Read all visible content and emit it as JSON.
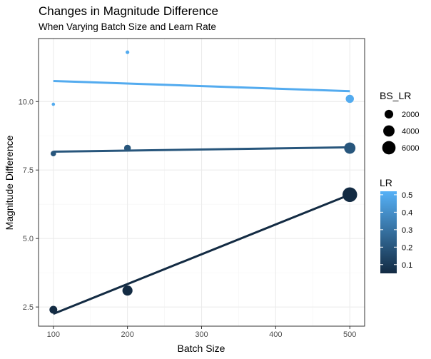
{
  "chart_data": {
    "type": "scatter",
    "title": "Changes in Magnitude Difference",
    "subtitle": "When Varying Batch Size and Learn Rate",
    "xlabel": "Batch Size",
    "ylabel": "Magnitude Difference",
    "xlim": [
      80,
      520
    ],
    "ylim": [
      1.8,
      12.3
    ],
    "x_ticks": [
      100,
      200,
      300,
      400,
      500
    ],
    "y_ticks": [
      2.5,
      5.0,
      7.5,
      10.0
    ],
    "x_tick_labels": [
      "100",
      "200",
      "300",
      "400",
      "500"
    ],
    "y_tick_labels": [
      "2.5",
      "5.0",
      "7.5",
      "10.0"
    ],
    "grid": true,
    "points": [
      {
        "x": 100,
        "y": 9.9,
        "lr": 0.5,
        "bs_lr": 50
      },
      {
        "x": 200,
        "y": 11.8,
        "lr": 0.5,
        "bs_lr": 100
      },
      {
        "x": 500,
        "y": 10.1,
        "lr": 0.5,
        "bs_lr": 1700
      },
      {
        "x": 100,
        "y": 8.1,
        "lr": 0.2,
        "bs_lr": 500
      },
      {
        "x": 200,
        "y": 8.3,
        "lr": 0.2,
        "bs_lr": 1000
      },
      {
        "x": 500,
        "y": 8.3,
        "lr": 0.2,
        "bs_lr": 4000
      },
      {
        "x": 100,
        "y": 2.4,
        "lr": 0.05,
        "bs_lr": 1500
      },
      {
        "x": 200,
        "y": 3.1,
        "lr": 0.05,
        "bs_lr": 3000
      },
      {
        "x": 500,
        "y": 6.6,
        "lr": 0.05,
        "bs_lr": 7500
      }
    ],
    "fit_lines": [
      {
        "lr": 0.5,
        "x": [
          100,
          500
        ],
        "y": [
          10.75,
          10.38
        ]
      },
      {
        "lr": 0.2,
        "x": [
          100,
          500
        ],
        "y": [
          8.17,
          8.33
        ]
      },
      {
        "lr": 0.05,
        "x": [
          100,
          500
        ],
        "y": [
          2.25,
          6.6
        ]
      }
    ],
    "legend_size": {
      "title": "BS_LR",
      "entries": [
        {
          "label": "2000",
          "value": 2000
        },
        {
          "label": "4000",
          "value": 4000
        },
        {
          "label": "6000",
          "value": 6000
        }
      ]
    },
    "legend_color": {
      "title": "LR",
      "range": [
        0.05,
        0.52
      ],
      "ticks": [
        0.1,
        0.2,
        0.3,
        0.4,
        0.5
      ],
      "tick_labels": [
        "0.1",
        "0.2",
        "0.3",
        "0.4",
        "0.5"
      ],
      "low_color": "#132b43",
      "high_color": "#56b1f7"
    },
    "colors": {
      "panel_border": "#333333",
      "grid_major": "#ebebeb",
      "grid_minor": "#f5f5f5"
    }
  }
}
